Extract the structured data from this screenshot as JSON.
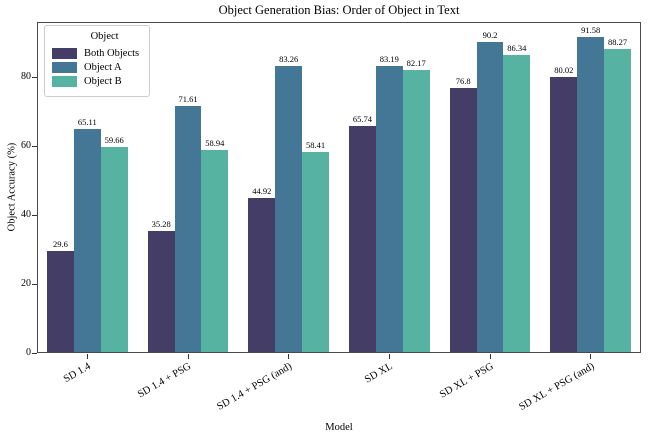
{
  "chart_data": {
    "type": "bar",
    "title": "Object Generation Bias: Order of Object in Text",
    "xlabel": "Model",
    "ylabel": "Object Accuracy (%)",
    "legend_title": "Object",
    "legend_position": "upper left",
    "grid": false,
    "bar_labels": true,
    "categories": [
      "SD 1.4",
      "SD 1.4 + PSG",
      "SD 1.4 + PSG (and)",
      "SD XL",
      "SD XL + PSG",
      "SD XL + PSG (and)"
    ],
    "series": [
      {
        "name": "Both Objects",
        "color": "#443e66",
        "values": [
          29.6,
          35.28,
          44.92,
          65.74,
          76.8,
          80.02
        ]
      },
      {
        "name": "Object A",
        "color": "#447795",
        "values": [
          65.11,
          71.61,
          83.26,
          83.19,
          90.2,
          91.58
        ]
      },
      {
        "name": "Object B",
        "color": "#57b3a1",
        "values": [
          59.66,
          58.94,
          58.41,
          82.17,
          86.34,
          88.27
        ]
      }
    ],
    "ylim": [
      0,
      96
    ],
    "yticks": [
      0,
      20,
      40,
      60,
      80
    ]
  }
}
